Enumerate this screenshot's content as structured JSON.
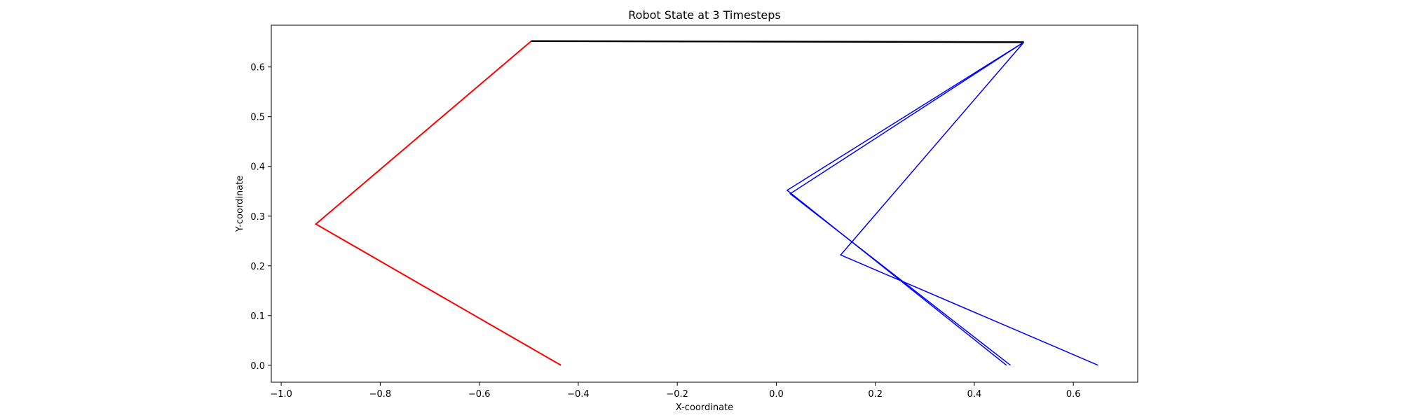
{
  "chart_data": {
    "type": "line",
    "title": "Robot State at 3 Timesteps",
    "xlabel": "X-coordinate",
    "ylabel": "Y-coordinate",
    "xlim": [
      -1.02,
      0.73
    ],
    "ylim": [
      -0.034,
      0.684
    ],
    "xticks": [
      -1.0,
      -0.8,
      -0.6,
      -0.4,
      -0.2,
      0.0,
      0.2,
      0.4,
      0.6
    ],
    "xtick_labels": [
      "−1.0",
      "−0.8",
      "−0.6",
      "−0.4",
      "−0.2",
      "0.0",
      "0.2",
      "0.4",
      "0.6"
    ],
    "yticks": [
      0.0,
      0.1,
      0.2,
      0.3,
      0.4,
      0.5,
      0.6
    ],
    "ytick_labels": [
      "0.0",
      "0.1",
      "0.2",
      "0.3",
      "0.4",
      "0.5",
      "0.6"
    ],
    "grid": false,
    "series": [
      {
        "color": "#ff0000",
        "width": 2,
        "x": [
          -0.435,
          -0.93,
          -0.495
        ],
        "y": [
          0.0,
          0.284,
          0.652
        ]
      },
      {
        "color": "#000000",
        "width": 2.5,
        "x": [
          -0.495,
          0.5
        ],
        "y": [
          0.652,
          0.65
        ]
      },
      {
        "color": "#0000ff",
        "width": 1.5,
        "x": [
          0.5,
          0.022,
          0.465
        ],
        "y": [
          0.65,
          0.352,
          0.0
        ]
      },
      {
        "color": "#0000ff",
        "width": 1.5,
        "x": [
          0.5,
          0.028,
          0.473
        ],
        "y": [
          0.65,
          0.345,
          0.0
        ]
      },
      {
        "color": "#0000ff",
        "width": 1.5,
        "x": [
          0.5,
          0.13,
          0.65
        ],
        "y": [
          0.65,
          0.222,
          0.0
        ]
      }
    ]
  }
}
